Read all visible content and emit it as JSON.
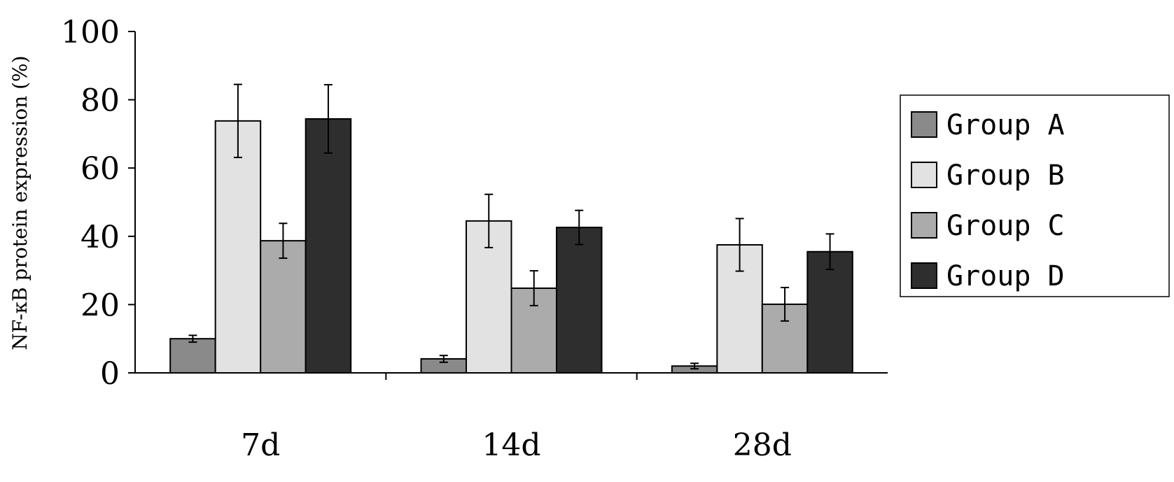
{
  "chart_data": {
    "type": "bar",
    "title": "",
    "xlabel": "",
    "ylabel": "NF-κB protein expression (%)",
    "ylim": [
      0,
      100
    ],
    "yticks": [
      "0",
      "20",
      "40",
      "60",
      "80",
      "100"
    ],
    "categories": [
      "7d",
      "14d",
      "28d"
    ],
    "grid": false,
    "legend_position": "right",
    "error_bars": true,
    "series": [
      {
        "name": "Group A",
        "color": "#8a8a8a",
        "values": [
          10.0,
          4.1,
          2.0
        ],
        "errors": [
          1.0,
          1.0,
          0.8
        ]
      },
      {
        "name": "Group B",
        "color": "#e2e2e2",
        "values": [
          73.8,
          44.5,
          37.5
        ],
        "errors": [
          10.7,
          7.8,
          7.7
        ]
      },
      {
        "name": "Group C",
        "color": "#ababab",
        "values": [
          38.7,
          24.8,
          20.1
        ],
        "errors": [
          5.1,
          5.1,
          4.9
        ]
      },
      {
        "name": "Group D",
        "color": "#2e2e2e",
        "values": [
          74.4,
          42.6,
          35.5
        ],
        "errors": [
          10.0,
          5.0,
          5.2
        ]
      }
    ]
  }
}
